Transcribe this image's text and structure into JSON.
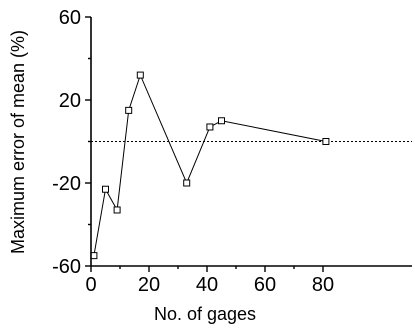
{
  "chart_data": {
    "type": "line",
    "title": "",
    "xlabel": "No. of gages",
    "ylabel": "Maximum error of mean (%)",
    "xlim": [
      0,
      90
    ],
    "ylim": [
      -60,
      60
    ],
    "x_ticks": [
      0,
      20,
      40,
      60,
      80
    ],
    "y_ticks": [
      -60,
      -20,
      20,
      60
    ],
    "x_tick_labels": [
      "0",
      "20",
      "40",
      "60",
      "80"
    ],
    "y_tick_labels": [
      "-60",
      "-20",
      "20",
      "60"
    ],
    "reference_line_y": 0,
    "reference_line_style": "dotted",
    "grid": false,
    "legend": "none",
    "series": [
      {
        "marker": "square",
        "x": [
          1,
          5,
          9,
          13,
          17,
          33,
          41,
          45,
          81
        ],
        "y": [
          -55,
          -23,
          -33,
          15,
          32,
          -20,
          7,
          10,
          0
        ]
      }
    ]
  }
}
